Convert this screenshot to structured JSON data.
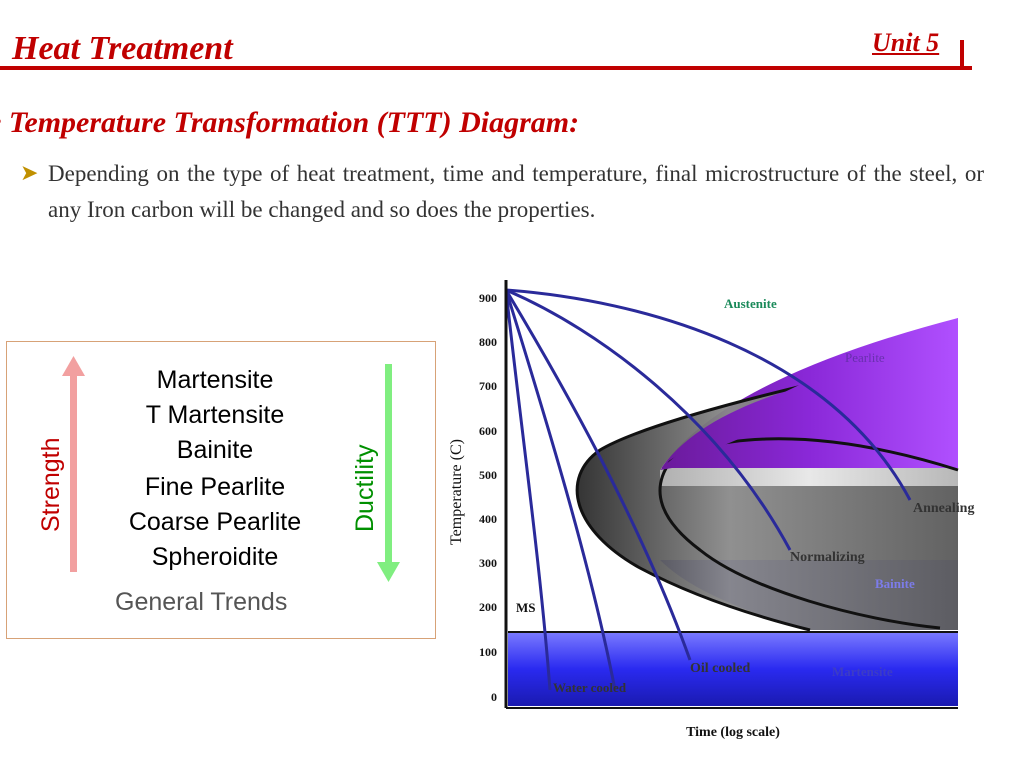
{
  "header": {
    "title": "Heat Treatment",
    "unit": "Unit 5"
  },
  "section_title": "e Temperature Transformation (TTT) Diagram:",
  "bullet": {
    "text": "Depending on the type of heat treatment, time and temperature, final microstructure of the steel, or any Iron carbon will be changed and so does the properties."
  },
  "trends": {
    "items": [
      "Martensite",
      "T Martensite",
      "Bainite",
      "Fine Pearlite",
      "Coarse Pearlite",
      "Spheroidite"
    ],
    "caption": "General Trends",
    "strength_label": "Strength",
    "ductility_label": "Ductility",
    "strength_color": "#f2a0a0",
    "ductility_color": "#80ee80"
  },
  "ttt": {
    "ylabel": "Temperature (C)",
    "xlabel": "Time (log scale)",
    "y_ticks": [
      "900",
      "800",
      "700",
      "600",
      "500",
      "400",
      "300",
      "200",
      "100",
      "0"
    ],
    "ms_label": "MS",
    "region_labels": {
      "austenite": "Austenite",
      "pearlite": "Pearlite",
      "bainite": "Bainite",
      "martensite": "Martensite"
    },
    "curve_labels": {
      "annealing": "Annealing",
      "normalizing": "Normalizing",
      "oil_cooled": "Oil cooled",
      "water_cooled": "Water cooled"
    },
    "colors": {
      "pearlite": "#9b30ff",
      "bainite": "#2828f0",
      "martensite": "#2a2af0",
      "nose": "#6a6a6a",
      "cooling_curves": "#2a2a9a"
    }
  }
}
